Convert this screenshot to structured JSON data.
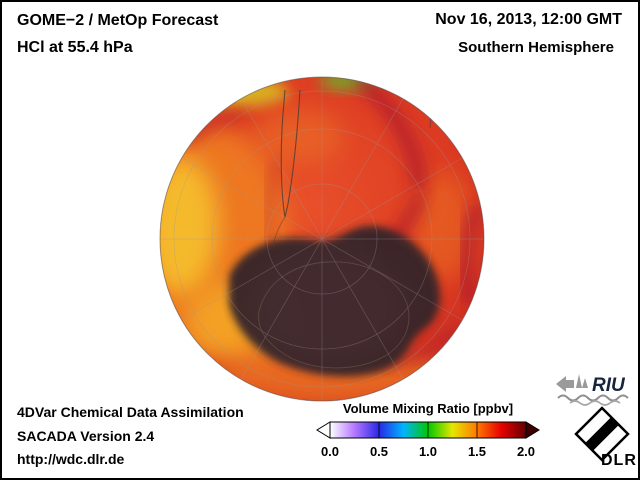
{
  "header": {
    "product": "GOME−2 / MetOp Forecast",
    "species_level": "HCl at 55.4 hPa",
    "datetime": "Nov 16, 2013, 12:00 GMT",
    "region": "Southern Hemisphere"
  },
  "map": {
    "view": "Southern Hemisphere polar view",
    "quantity": "HCl volume mixing ratio",
    "units": "ppbv",
    "scale_min": 0.0,
    "scale_max": 2.0
  },
  "colorbar": {
    "title": "Volume Mixing Ratio [ppbv]",
    "ticks": [
      "0.0",
      "0.5",
      "1.0",
      "1.5",
      "2.0"
    ],
    "colors": [
      "#ffffff",
      "#b478ff",
      "#2828e6",
      "#00b4ff",
      "#00c800",
      "#e6e600",
      "#ff7800",
      "#e60000",
      "#640000"
    ],
    "left_arrow_color": "#ffffff",
    "right_arrow_color": "#3c0000"
  },
  "footer": {
    "line1": "4DVar Chemical Data Assimilation",
    "line2": "SACADA Version 2.4",
    "line3": "http://wdc.dlr.de"
  },
  "logos": {
    "riu_label": "RIU",
    "dlr_label": "DLR"
  }
}
